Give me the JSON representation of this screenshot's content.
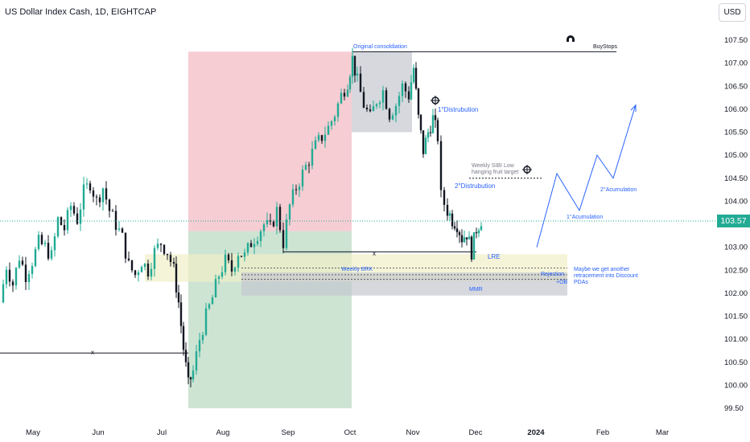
{
  "header": {
    "title": "US Dollar Index Cash, 1D, EIGHTCAP",
    "currency_button": "USD"
  },
  "price_scale": {
    "ticks": [
      "107.50",
      "107.00",
      "106.50",
      "106.00",
      "105.50",
      "105.00",
      "104.50",
      "104.00",
      "103.50",
      "103.00",
      "102.50",
      "102.00",
      "101.50",
      "101.00",
      "100.50",
      "100.00",
      "99.50"
    ],
    "current_price": "103.57"
  },
  "time_scale": {
    "labels": [
      "May",
      "Jun",
      "Jul",
      "Aug",
      "Sep",
      "Oct",
      "Nov",
      "Dec",
      "2024",
      "Feb",
      "Mar"
    ]
  },
  "annotations": {
    "original_consolidation": "Original consoldiation",
    "buystops": "BuyStops",
    "distribution_1": "1°Distrubution",
    "distribution_2": "2°Distrubution",
    "weekly_sibi": "Weekly SIBI Low",
    "weekly_sibi_2": "hanging fruit target",
    "accumulation_1": "1°Acumulation",
    "accumulation_2": "2°Acumulation",
    "lre": "LRE",
    "weekly_brk": "Weekly BRK",
    "rejection": "Rejection",
    "ob": "+OB",
    "mmr": "MMR",
    "note_1": "Maybe we get another",
    "note_2": "retracement into Discount",
    "note_3": "PDAs",
    "x_mark": "x"
  },
  "colors": {
    "up": "#22ab94",
    "down": "#131722",
    "annotation_blue": "#2962ff",
    "current_price": "#22ab94"
  },
  "chart_data": {
    "type": "candlestick",
    "symbol": "US Dollar Index Cash",
    "interval": "1D",
    "source": "EIGHTCAP",
    "x": [
      "May",
      "Jun",
      "Jul",
      "Aug",
      "Sep",
      "Oct",
      "Nov",
      "Dec",
      "2024",
      "Feb",
      "Mar"
    ],
    "ylim": [
      99.35,
      107.85
    ],
    "close_path": [
      [
        0,
        101.8
      ],
      [
        8,
        102.6
      ],
      [
        16,
        102.2
      ],
      [
        24,
        102.8
      ],
      [
        32,
        102.4
      ],
      [
        40,
        102.7
      ],
      [
        48,
        103.1
      ],
      [
        56,
        103.0
      ],
      [
        64,
        102.8
      ],
      [
        72,
        103.6
      ],
      [
        80,
        103.4
      ],
      [
        88,
        103.9
      ],
      [
        96,
        103.6
      ],
      [
        104,
        104.2
      ],
      [
        112,
        104.4
      ],
      [
        120,
        104.0
      ],
      [
        128,
        104.3
      ],
      [
        136,
        103.8
      ],
      [
        144,
        103.5
      ],
      [
        152,
        103.2
      ],
      [
        160,
        102.6
      ],
      [
        168,
        102.4
      ],
      [
        176,
        102.7
      ],
      [
        184,
        102.5
      ],
      [
        192,
        102.9
      ],
      [
        200,
        103.1
      ],
      [
        208,
        102.9
      ],
      [
        216,
        102.5
      ],
      [
        222,
        101.8
      ],
      [
        228,
        100.8
      ],
      [
        234,
        100.0
      ],
      [
        240,
        100.3
      ],
      [
        248,
        101.0
      ],
      [
        256,
        101.5
      ],
      [
        264,
        101.9
      ],
      [
        272,
        102.4
      ],
      [
        280,
        102.7
      ],
      [
        288,
        102.5
      ],
      [
        296,
        102.9
      ],
      [
        304,
        102.8
      ],
      [
        312,
        103.1
      ],
      [
        320,
        103.3
      ],
      [
        328,
        103.5
      ],
      [
        336,
        103.4
      ],
      [
        344,
        103.8
      ],
      [
        352,
        103.1
      ],
      [
        360,
        103.9
      ],
      [
        368,
        104.3
      ],
      [
        376,
        104.6
      ],
      [
        384,
        104.9
      ],
      [
        392,
        105.2
      ],
      [
        400,
        105.4
      ],
      [
        408,
        105.6
      ],
      [
        416,
        105.9
      ],
      [
        424,
        106.3
      ],
      [
        432,
        106.6
      ],
      [
        438,
        107.1
      ],
      [
        444,
        106.6
      ],
      [
        452,
        106.1
      ],
      [
        460,
        105.8
      ],
      [
        468,
        106.2
      ],
      [
        476,
        106.4
      ],
      [
        484,
        105.9
      ],
      [
        492,
        106.1
      ],
      [
        500,
        106.5
      ],
      [
        508,
        106.3
      ],
      [
        514,
        106.9
      ],
      [
        520,
        105.8
      ],
      [
        526,
        105.1
      ],
      [
        532,
        105.5
      ],
      [
        538,
        105.8
      ],
      [
        544,
        105.4
      ],
      [
        548,
        104.1
      ],
      [
        556,
        103.8
      ],
      [
        562,
        103.6
      ],
      [
        568,
        103.5
      ],
      [
        574,
        103.2
      ],
      [
        580,
        103.3
      ],
      [
        586,
        102.9
      ],
      [
        592,
        103.4
      ],
      [
        598,
        103.6
      ]
    ],
    "zones": [
      {
        "name": "premium-zone",
        "color": "#f2b8c0",
        "y": [
          103.35,
          107.25
        ]
      },
      {
        "name": "discount-zone",
        "color": "#b9d8c0",
        "y": [
          99.5,
          103.35
        ]
      },
      {
        "name": "original-consolidation",
        "color": "#c4c7cf",
        "y": [
          105.5,
          107.25
        ]
      },
      {
        "name": "equilibrium-band",
        "color": "#f1efc8",
        "y": [
          102.25,
          102.85
        ]
      },
      {
        "name": "mmr-zone",
        "color": "#c4c7cf",
        "y": [
          101.95,
          102.45
        ]
      }
    ],
    "levels": [
      {
        "name": "buystops",
        "value": 107.25
      },
      {
        "name": "weekly-sibi-low",
        "value": 104.5
      },
      {
        "name": "range-low",
        "value": 102.9
      },
      {
        "name": "old-low",
        "value": 100.7
      }
    ],
    "projection_path": [
      [
        103.0
      ],
      [
        104.6
      ],
      [
        103.8
      ],
      [
        105.0
      ],
      [
        104.5
      ],
      [
        106.1
      ]
    ],
    "current_price": 103.57
  }
}
